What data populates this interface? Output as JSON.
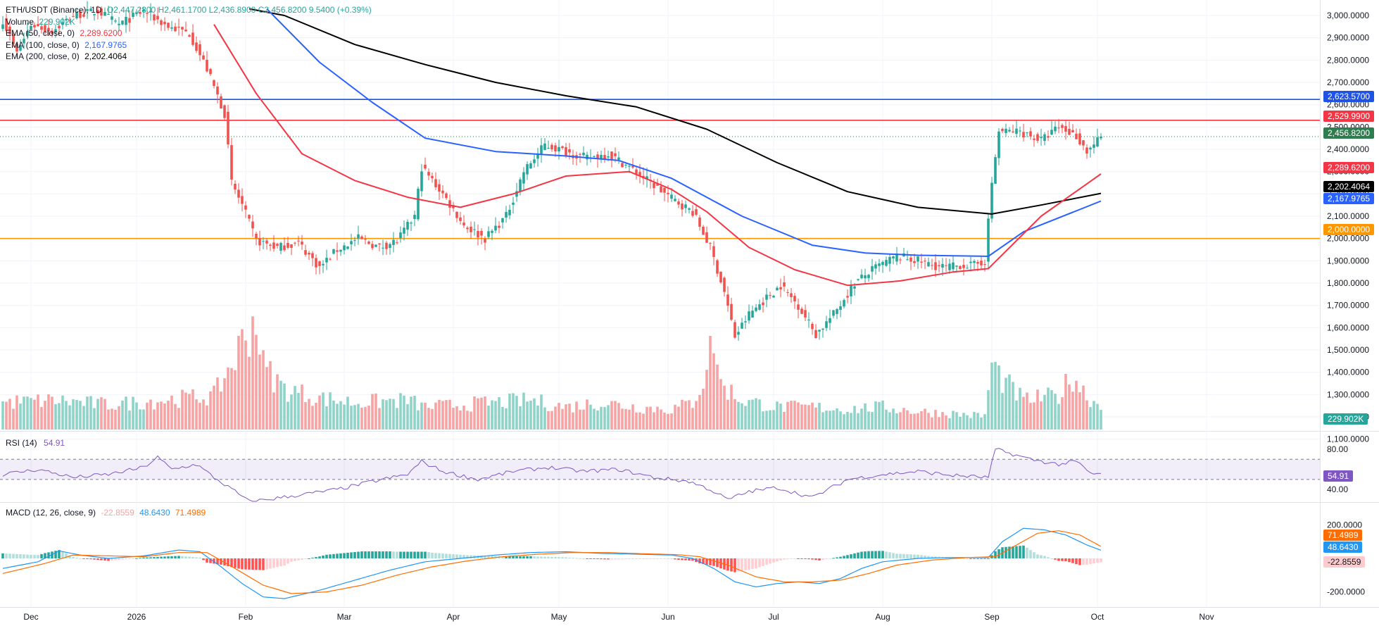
{
  "symbol_legend": {
    "title": "ETH/USDT (Binance), 1D",
    "ohlc": "O2,447.2800 H2,461.1700 L2,436.8900 C2,456.8200 9.5400 (+0.39%)",
    "volume_label": "Volume",
    "volume_value": "229.902K",
    "ema50_label": "EMA (50, close, 0)",
    "ema50_value": "2,289.6200",
    "ema100_label": "EMA (100, close, 0)",
    "ema100_value": "2,167.9765",
    "ema200_label": "EMA (200, close, 0)",
    "ema200_value": "2,202.4064"
  },
  "rsi_legend": {
    "label": "RSI (14)",
    "value": "54.91"
  },
  "macd_legend": {
    "label": "MACD (12, 26, close, 9)",
    "hist": "-22.8559",
    "macd": "48.6430",
    "signal": "71.4989"
  },
  "price_badges": {
    "blue_line": "2,623.5700",
    "red_line": "2,529.9900",
    "last": "2,456.8200",
    "ema50": "2,289.6200",
    "ema200": "2,202.4064",
    "ema100": "2,167.9765",
    "orange_line": "2,000.0000",
    "volume": "229.902K",
    "rsi": "54.91",
    "macd_signal": "71.4989",
    "macd": "48.6430",
    "macd_hist": "-22.8559"
  },
  "colors": {
    "up": "#26a69a",
    "down": "#ef5350",
    "vol_up": "#8fd3c8",
    "vol_down": "#f5a3a3",
    "ema50": "#f23645",
    "ema100": "#2962ff",
    "ema200": "#000000",
    "blue_line": "#1e53e5",
    "red_line": "#f23645",
    "orange_line": "#ff9800",
    "rsi": "#7e57c2",
    "macd": "#2196f3",
    "signal": "#ff6d00",
    "last_badge": "#2e7d4f"
  },
  "chart_data": [
    {
      "type": "candlestick",
      "title": "ETH/USDT (Binance), 1D",
      "x_ticks": [
        "Dec",
        "2026",
        "Feb",
        "Mar",
        "Apr",
        "May",
        "Jun",
        "Jul",
        "Aug",
        "Sep",
        "Oct",
        "Nov"
      ],
      "y_ticks": [
        "3,000.0000",
        "2,900.0000",
        "2,800.0000",
        "2,700.0000",
        "2,600.0000",
        "2,500.0000",
        "2,400.0000",
        "2,300.0000",
        "2,200.0000",
        "2,100.0000",
        "2,000.0000",
        "1,900.0000",
        "1,800.0000",
        "1,700.0000",
        "1,600.0000",
        "1,500.0000",
        "1,400.0000",
        "1,300.0000",
        "1,200.0000",
        "1,100.0000"
      ],
      "ylim": [
        1000,
        3050
      ],
      "horizontal_lines": [
        2623.57,
        2529.99,
        2000
      ],
      "last_price": 2456.82,
      "close_anchors": [
        [
          0,
          2980
        ],
        [
          4,
          2830
        ],
        [
          8,
          2960
        ],
        [
          14,
          2930
        ],
        [
          20,
          3000
        ],
        [
          27,
          3020
        ],
        [
          33,
          2960
        ],
        [
          40,
          3020
        ],
        [
          47,
          2950
        ],
        [
          53,
          2920
        ],
        [
          58,
          2760
        ],
        [
          63,
          2560
        ],
        [
          65,
          2250
        ],
        [
          68,
          2150
        ],
        [
          72,
          1990
        ],
        [
          78,
          1960
        ],
        [
          84,
          1980
        ],
        [
          90,
          1870
        ],
        [
          95,
          1950
        ],
        [
          101,
          2000
        ],
        [
          107,
          1960
        ],
        [
          112,
          1990
        ],
        [
          117,
          2100
        ],
        [
          119,
          2320
        ],
        [
          125,
          2200
        ],
        [
          131,
          2060
        ],
        [
          137,
          2000
        ],
        [
          143,
          2100
        ],
        [
          148,
          2300
        ],
        [
          154,
          2420
        ],
        [
          160,
          2390
        ],
        [
          166,
          2360
        ],
        [
          172,
          2380
        ],
        [
          178,
          2320
        ],
        [
          184,
          2250
        ],
        [
          190,
          2180
        ],
        [
          196,
          2120
        ],
        [
          201,
          1960
        ],
        [
          205,
          1760
        ],
        [
          208,
          1560
        ],
        [
          212,
          1660
        ],
        [
          216,
          1720
        ],
        [
          221,
          1790
        ],
        [
          226,
          1700
        ],
        [
          231,
          1570
        ],
        [
          236,
          1660
        ],
        [
          242,
          1800
        ],
        [
          248,
          1870
        ],
        [
          254,
          1920
        ],
        [
          260,
          1900
        ],
        [
          264,
          1880
        ],
        [
          268,
          1870
        ],
        [
          272,
          1880
        ],
        [
          276,
          1880
        ],
        [
          279,
          1900
        ],
        [
          281,
          2250
        ],
        [
          283,
          2480
        ],
        [
          289,
          2480
        ],
        [
          295,
          2440
        ],
        [
          300,
          2500
        ],
        [
          305,
          2460
        ],
        [
          308,
          2390
        ],
        [
          312,
          2456.82
        ]
      ],
      "volume_anchors": [
        [
          0,
          1.2
        ],
        [
          15,
          1.3
        ],
        [
          30,
          1.1
        ],
        [
          45,
          1.3
        ],
        [
          60,
          1.5
        ],
        [
          66,
          3.2
        ],
        [
          70,
          4.5
        ],
        [
          72,
          5.0
        ],
        [
          74,
          2.8
        ],
        [
          80,
          1.8
        ],
        [
          90,
          1.4
        ],
        [
          100,
          1.2
        ],
        [
          115,
          1.3
        ],
        [
          120,
          1.0
        ],
        [
          130,
          1.1
        ],
        [
          140,
          1.2
        ],
        [
          150,
          1.3
        ],
        [
          160,
          1.0
        ],
        [
          170,
          1.2
        ],
        [
          180,
          1.0
        ],
        [
          190,
          0.9
        ],
        [
          196,
          1.2
        ],
        [
          199,
          2.2
        ],
        [
          202,
          4.1
        ],
        [
          204,
          2.0
        ],
        [
          210,
          1.3
        ],
        [
          220,
          1.0
        ],
        [
          230,
          1.0
        ],
        [
          240,
          0.9
        ],
        [
          250,
          1.0
        ],
        [
          260,
          0.8
        ],
        [
          270,
          0.7
        ],
        [
          279,
          0.6
        ],
        [
          281,
          2.9
        ],
        [
          284,
          2.2
        ],
        [
          290,
          1.3
        ],
        [
          300,
          1.5
        ],
        [
          304,
          2.4
        ],
        [
          308,
          1.5
        ],
        [
          312,
          1.0
        ]
      ],
      "ema50_anchors": [
        [
          60,
          2960
        ],
        [
          72,
          2650
        ],
        [
          85,
          2380
        ],
        [
          100,
          2260
        ],
        [
          115,
          2185
        ],
        [
          130,
          2140
        ],
        [
          145,
          2200
        ],
        [
          160,
          2280
        ],
        [
          178,
          2300
        ],
        [
          190,
          2220
        ],
        [
          200,
          2120
        ],
        [
          212,
          1960
        ],
        [
          225,
          1860
        ],
        [
          240,
          1790
        ],
        [
          255,
          1810
        ],
        [
          270,
          1850
        ],
        [
          280,
          1865
        ],
        [
          295,
          2100
        ],
        [
          312,
          2289.62
        ]
      ],
      "ema100_anchors": [
        [
          75,
          3030
        ],
        [
          90,
          2790
        ],
        [
          105,
          2610
        ],
        [
          120,
          2450
        ],
        [
          140,
          2390
        ],
        [
          160,
          2370
        ],
        [
          175,
          2350
        ],
        [
          190,
          2270
        ],
        [
          210,
          2100
        ],
        [
          230,
          1970
        ],
        [
          245,
          1935
        ],
        [
          260,
          1925
        ],
        [
          280,
          1920
        ],
        [
          290,
          2030
        ],
        [
          312,
          2167.98
        ]
      ],
      "ema200_anchors": [
        [
          70,
          3030
        ],
        [
          80,
          3000
        ],
        [
          100,
          2870
        ],
        [
          120,
          2780
        ],
        [
          140,
          2700
        ],
        [
          160,
          2640
        ],
        [
          180,
          2590
        ],
        [
          200,
          2490
        ],
        [
          220,
          2340
        ],
        [
          240,
          2210
        ],
        [
          260,
          2140
        ],
        [
          281,
          2110
        ],
        [
          295,
          2150
        ],
        [
          312,
          2202.41
        ]
      ],
      "series": [
        {
          "name": "Volume",
          "last": 229902
        },
        {
          "name": "EMA (50, close, 0)",
          "last": 2289.62
        },
        {
          "name": "EMA (100, close, 0)",
          "last": 2167.9765
        },
        {
          "name": "EMA (200, close, 0)",
          "last": 2202.4064
        }
      ]
    },
    {
      "type": "line",
      "title": "RSI (14)",
      "y_ticks": [
        "80.00",
        "40.00"
      ],
      "bands": [
        70,
        50
      ],
      "ylim": [
        35,
        85
      ],
      "rsi_anchors": [
        [
          0,
          55
        ],
        [
          10,
          60
        ],
        [
          20,
          52
        ],
        [
          30,
          55
        ],
        [
          40,
          62
        ],
        [
          44,
          72
        ],
        [
          48,
          60
        ],
        [
          55,
          65
        ],
        [
          60,
          52
        ],
        [
          66,
          38
        ],
        [
          70,
          28
        ],
        [
          75,
          30
        ],
        [
          85,
          35
        ],
        [
          95,
          40
        ],
        [
          105,
          48
        ],
        [
          115,
          55
        ],
        [
          119,
          68
        ],
        [
          125,
          58
        ],
        [
          135,
          50
        ],
        [
          145,
          58
        ],
        [
          155,
          62
        ],
        [
          165,
          58
        ],
        [
          175,
          60
        ],
        [
          185,
          52
        ],
        [
          195,
          48
        ],
        [
          201,
          40
        ],
        [
          206,
          30
        ],
        [
          212,
          38
        ],
        [
          220,
          42
        ],
        [
          230,
          32
        ],
        [
          240,
          50
        ],
        [
          250,
          55
        ],
        [
          260,
          58
        ],
        [
          270,
          54
        ],
        [
          280,
          52
        ],
        [
          282,
          80
        ],
        [
          286,
          76
        ],
        [
          292,
          70
        ],
        [
          300,
          65
        ],
        [
          305,
          68
        ],
        [
          309,
          56
        ],
        [
          312,
          54.91
        ]
      ],
      "series": [
        {
          "name": "RSI (14)",
          "last": 54.91
        }
      ]
    },
    {
      "type": "line",
      "title": "MACD (12, 26, close, 9)",
      "y_ticks": [
        "200.0000",
        "-200.0000"
      ],
      "ylim": [
        -250,
        240
      ],
      "macd_anchors": [
        [
          0,
          -60
        ],
        [
          10,
          -20
        ],
        [
          16,
          45
        ],
        [
          22,
          20
        ],
        [
          30,
          0
        ],
        [
          40,
          15
        ],
        [
          50,
          50
        ],
        [
          56,
          40
        ],
        [
          62,
          -50
        ],
        [
          68,
          -150
        ],
        [
          74,
          -230
        ],
        [
          80,
          -240
        ],
        [
          90,
          -190
        ],
        [
          100,
          -130
        ],
        [
          110,
          -70
        ],
        [
          120,
          -20
        ],
        [
          130,
          0
        ],
        [
          140,
          20
        ],
        [
          150,
          35
        ],
        [
          160,
          40
        ],
        [
          170,
          30
        ],
        [
          180,
          25
        ],
        [
          190,
          20
        ],
        [
          196,
          0
        ],
        [
          202,
          -60
        ],
        [
          208,
          -140
        ],
        [
          214,
          -170
        ],
        [
          220,
          -150
        ],
        [
          226,
          -140
        ],
        [
          232,
          -150
        ],
        [
          238,
          -120
        ],
        [
          244,
          -60
        ],
        [
          250,
          -20
        ],
        [
          260,
          0
        ],
        [
          270,
          5
        ],
        [
          280,
          5
        ],
        [
          284,
          100
        ],
        [
          290,
          180
        ],
        [
          296,
          170
        ],
        [
          302,
          140
        ],
        [
          308,
          80
        ],
        [
          312,
          48.643
        ]
      ],
      "signal_anchors": [
        [
          0,
          -90
        ],
        [
          12,
          -30
        ],
        [
          20,
          20
        ],
        [
          30,
          15
        ],
        [
          40,
          10
        ],
        [
          50,
          35
        ],
        [
          58,
          35
        ],
        [
          66,
          -60
        ],
        [
          74,
          -160
        ],
        [
          82,
          -210
        ],
        [
          92,
          -200
        ],
        [
          102,
          -160
        ],
        [
          112,
          -100
        ],
        [
          122,
          -50
        ],
        [
          132,
          -15
        ],
        [
          142,
          10
        ],
        [
          152,
          25
        ],
        [
          162,
          35
        ],
        [
          172,
          35
        ],
        [
          182,
          28
        ],
        [
          192,
          22
        ],
        [
          198,
          10
        ],
        [
          206,
          -40
        ],
        [
          214,
          -110
        ],
        [
          222,
          -140
        ],
        [
          230,
          -140
        ],
        [
          238,
          -130
        ],
        [
          246,
          -90
        ],
        [
          254,
          -40
        ],
        [
          264,
          -10
        ],
        [
          274,
          5
        ],
        [
          282,
          10
        ],
        [
          288,
          80
        ],
        [
          294,
          150
        ],
        [
          300,
          165
        ],
        [
          306,
          140
        ],
        [
          312,
          71.4989
        ]
      ],
      "series": [
        {
          "name": "MACD",
          "last": 48.643
        },
        {
          "name": "Signal",
          "last": 71.4989
        },
        {
          "name": "Histogram",
          "last": -22.8559
        }
      ]
    }
  ]
}
